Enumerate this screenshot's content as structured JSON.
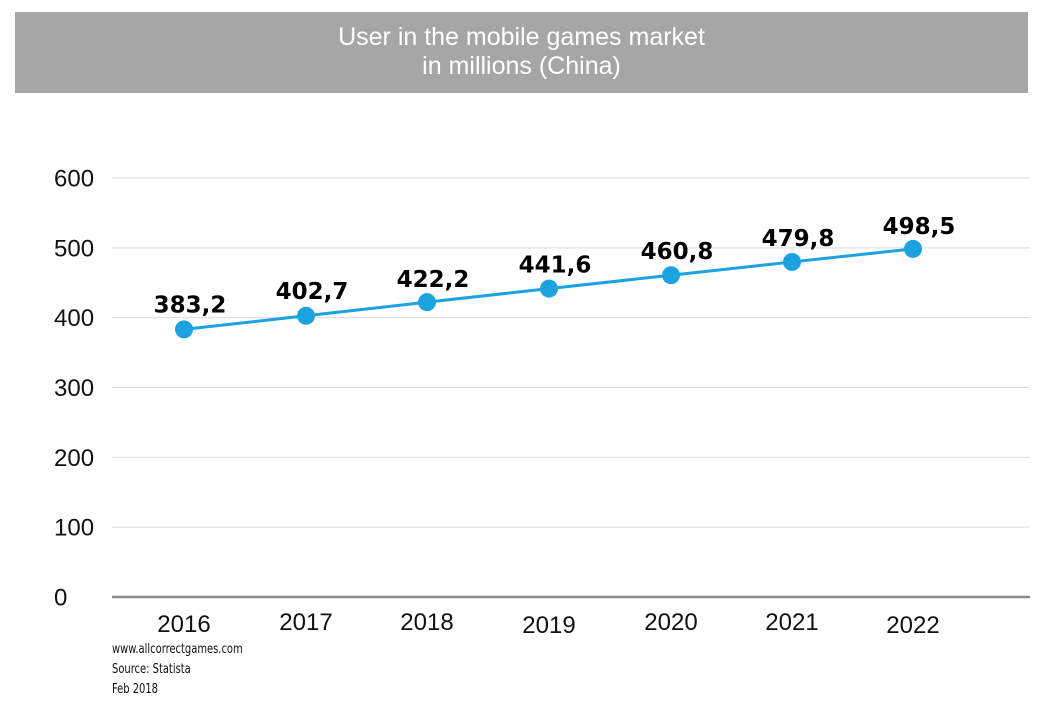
{
  "chart_data": {
    "type": "line",
    "title": "User in the mobile games market",
    "subtitle": "in millions (China)",
    "xlabel": "",
    "ylabel": "",
    "categories": [
      "2016",
      "2017",
      "2018",
      "2019",
      "2020",
      "2021",
      "2022"
    ],
    "series": [
      {
        "values": [
          383.2,
          402.7,
          422.2,
          441.6,
          460.8,
          479.8,
          498.5
        ],
        "labels": [
          "383,2",
          "402,7",
          "422,2",
          "441,6",
          "460,8",
          "479,8",
          "498,5"
        ],
        "color": "#1aa3e0"
      }
    ],
    "ylim": [
      0,
      600
    ],
    "yticks": [
      "0",
      "100",
      "200",
      "300",
      "400",
      "500",
      "600"
    ],
    "grid": true,
    "legend": "none"
  },
  "footer": {
    "website": "www.allcorrectgames.com",
    "source": "Source: Statista",
    "date": "Feb 2018"
  },
  "colors": {
    "banner": "#a6a6a6",
    "line": "#1aa3e0",
    "grid": "#d9d9d9",
    "axis": "#8c8c8c"
  }
}
